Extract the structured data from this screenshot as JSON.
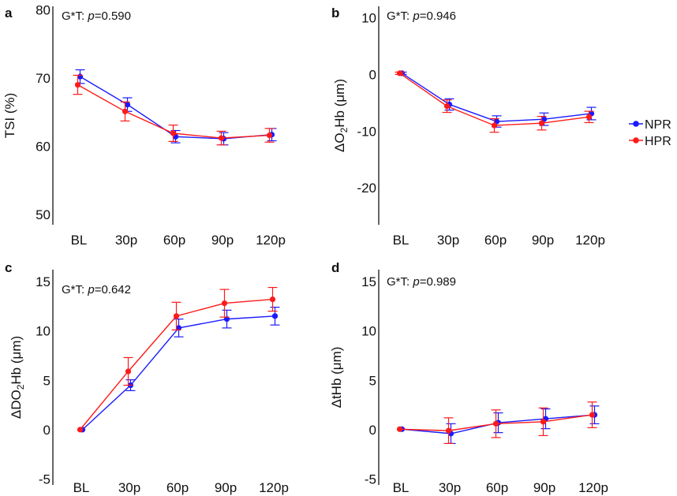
{
  "figure": {
    "colors": {
      "NPR": "#1a1aff",
      "HPR": "#ff1a1a",
      "axis": "#000000"
    },
    "legend": [
      {
        "name": "NPR",
        "color": "#1a1aff"
      },
      {
        "name": "HPR",
        "color": "#ff1a1a"
      }
    ]
  },
  "chart_data": [
    {
      "panel": "a",
      "type": "line",
      "categories": [
        "BL",
        "30p",
        "60p",
        "90p",
        "120p"
      ],
      "ylabel": "TSI (%)",
      "ylabel_parts": [
        {
          "t": "TSI (%)",
          "sub": false
        }
      ],
      "yticks": [
        50,
        60,
        70,
        80
      ],
      "ylim": [
        48.5,
        80.5
      ],
      "annotation": {
        "prefix": "G*T: ",
        "p_symbol": "p",
        "value": "=0.590"
      },
      "series": [
        {
          "name": "NPR",
          "values": [
            70.2,
            66.1,
            61.4,
            61.1,
            61.7
          ],
          "errors": [
            1.0,
            1.0,
            0.9,
            0.9,
            0.9
          ]
        },
        {
          "name": "HPR",
          "values": [
            69.0,
            65.1,
            61.9,
            61.2,
            61.6
          ],
          "errors": [
            1.4,
            1.4,
            1.2,
            1.0,
            1.0
          ]
        }
      ]
    },
    {
      "panel": "b",
      "type": "line",
      "categories": [
        "BL",
        "30p",
        "60p",
        "90p",
        "120p"
      ],
      "ylabel": "ΔO2Hb (μm)",
      "ylabel_parts": [
        {
          "t": "ΔO",
          "sub": false
        },
        {
          "t": "2",
          "sub": true
        },
        {
          "t": "Hb (μm)",
          "sub": false
        }
      ],
      "yticks": [
        -20,
        -10,
        0,
        10
      ],
      "ylim": [
        -26.5,
        12
      ],
      "annotation": {
        "prefix": "G*T: ",
        "p_symbol": "p",
        "value": "=0.946"
      },
      "series": [
        {
          "name": "NPR",
          "values": [
            0.2,
            -5.3,
            -8.3,
            -7.9,
            -6.9
          ],
          "errors": [
            0.2,
            1.0,
            1.0,
            1.1,
            1.1
          ]
        },
        {
          "name": "HPR",
          "values": [
            0.2,
            -5.6,
            -9.0,
            -8.6,
            -7.5
          ],
          "errors": [
            0.2,
            1.1,
            1.2,
            1.2,
            1.0
          ]
        }
      ]
    },
    {
      "panel": "c",
      "type": "line",
      "categories": [
        "BL",
        "30p",
        "60p",
        "90p",
        "120p"
      ],
      "ylabel": "ΔDO2Hb (μm)",
      "ylabel_parts": [
        {
          "t": "ΔDO",
          "sub": false
        },
        {
          "t": "2",
          "sub": true
        },
        {
          "t": "Hb (μm)",
          "sub": false
        }
      ],
      "yticks": [
        -5,
        0,
        5,
        10,
        15
      ],
      "ylim": [
        -5.6,
        16.2
      ],
      "annotation": {
        "prefix": "G*T: ",
        "p_symbol": "p",
        "value": "=0.642"
      },
      "series": [
        {
          "name": "NPR",
          "values": [
            0.0,
            4.5,
            10.3,
            11.2,
            11.5
          ],
          "errors": [
            0.05,
            0.55,
            0.9,
            0.9,
            0.9
          ]
        },
        {
          "name": "HPR",
          "values": [
            0.0,
            5.9,
            11.5,
            12.8,
            13.2
          ],
          "errors": [
            0.05,
            1.4,
            1.4,
            1.4,
            1.2
          ]
        }
      ]
    },
    {
      "panel": "d",
      "type": "line",
      "categories": [
        "BL",
        "30p",
        "60p",
        "90p",
        "120p"
      ],
      "ylabel": "ΔtHb (μm)",
      "ylabel_parts": [
        {
          "t": "ΔtHb (μm)",
          "sub": false
        }
      ],
      "yticks": [
        -5,
        0,
        5,
        10,
        15
      ],
      "ylim": [
        -5.6,
        16.2
      ],
      "annotation": {
        "prefix": "G*T: ",
        "p_symbol": "p",
        "value": "=0.989"
      },
      "series": [
        {
          "name": "NPR",
          "values": [
            0.05,
            -0.4,
            0.7,
            1.1,
            1.5
          ],
          "errors": [
            0.05,
            1.0,
            1.0,
            1.0,
            0.9
          ]
        },
        {
          "name": "HPR",
          "values": [
            0.05,
            -0.1,
            0.6,
            0.8,
            1.5
          ],
          "errors": [
            0.05,
            1.3,
            1.4,
            1.4,
            1.3
          ]
        }
      ]
    }
  ]
}
